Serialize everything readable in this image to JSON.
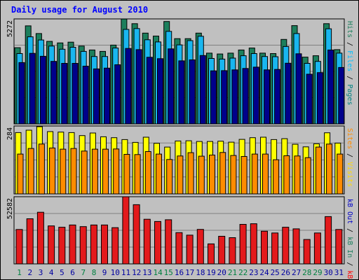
{
  "colors": {
    "background": "#c0c0c0",
    "frame": "#000000",
    "title": "#0000ff",
    "pages": "#008080",
    "files": "#00bfff",
    "hits": "#1c7f5c",
    "hits_fill": "#1c7f5c",
    "files_fill": "#19b6ef",
    "pages_fill": "#00008b",
    "visits_fill": "#ffff00",
    "sites_fill": "#ff8c00",
    "kbin_fill": "#e31a1c",
    "kbout_fill": "#0b7a4a",
    "visits": "#ffd800",
    "sites": "#ff8c00",
    "kbf": "#ff0000",
    "kbin": "#1c7f5c",
    "kbout": "#0000c8",
    "weekend_label": "#008040",
    "weekday_label": "#0000a0",
    "gridline": "#808080"
  },
  "chart_data": {
    "type": "bar",
    "title": "Daily usage for August 2010",
    "categories": [
      "1",
      "2",
      "3",
      "4",
      "5",
      "6",
      "7",
      "8",
      "9",
      "10",
      "11",
      "12",
      "13",
      "14",
      "15",
      "16",
      "17",
      "18",
      "19",
      "20",
      "21",
      "22",
      "23",
      "24",
      "25",
      "26",
      "27",
      "28",
      "29",
      "30",
      "31"
    ],
    "weekend_days": [
      "1",
      "7",
      "8",
      "14",
      "15",
      "21",
      "22",
      "28",
      "29"
    ],
    "panels": [
      {
        "name": "hits-files-pages",
        "ymax_label": "5272",
        "ymax": 5272,
        "labels": [
          {
            "text": "Pages",
            "color": "pages"
          },
          {
            "text": " / ",
            "color": "frame"
          },
          {
            "text": "Files",
            "color": "files"
          },
          {
            "text": " / ",
            "color": "frame"
          },
          {
            "text": "Hits",
            "color": "hits"
          }
        ],
        "series": [
          {
            "name": "Hits",
            "fill": "hits_fill",
            "values": [
              3880,
              4990,
              4600,
              4200,
              4120,
              4160,
              3960,
              3760,
              3690,
              4010,
              5340,
              5100,
              4620,
              4470,
              5210,
              4340,
              4340,
              4620,
              3600,
              3560,
              3600,
              3760,
              3860,
              3600,
              3580,
              4300,
              5000,
              3400,
              3470,
              5100,
              3780
            ]
          },
          {
            "name": "Files",
            "fill": "files_fill",
            "values": [
              3580,
              4430,
              4270,
              3960,
              3800,
              3900,
              3690,
              3430,
              3430,
              3860,
              4810,
              4850,
              4280,
              4170,
              4710,
              4020,
              4240,
              4460,
              3330,
              3300,
              3350,
              3470,
              3580,
              3430,
              3420,
              3940,
              4600,
              3080,
              3180,
              4840,
              3600
            ]
          },
          {
            "name": "Pages",
            "fill": "pages_fill",
            "values": [
              3120,
              3590,
              3440,
              3180,
              3080,
              3080,
              2940,
              2800,
              2840,
              3010,
              3840,
              3780,
              3390,
              3320,
              3820,
              3210,
              3260,
              3480,
              2700,
              2710,
              2750,
              2820,
              2890,
              2750,
              2770,
              3090,
              3570,
              2530,
              2610,
              3760,
              2870
            ]
          }
        ]
      },
      {
        "name": "visits-sites",
        "ymax_label": "284",
        "ymax": 284,
        "labels": [
          {
            "text": "Visits",
            "color": "visits"
          },
          {
            "text": " / ",
            "color": "frame"
          },
          {
            "text": "Sites",
            "color": "sites"
          }
        ],
        "series": [
          {
            "name": "Visits",
            "fill": "visits_fill",
            "values": [
              262,
              272,
              287,
              266,
              264,
              262,
              249,
              260,
              244,
              240,
              232,
              220,
              242,
              216,
              200,
              226,
              227,
              224,
              224,
              225,
              221,
              233,
              240,
              242,
              232,
              236,
              212,
              201,
              214,
              261,
              217
            ]
          },
          {
            "name": "Sites",
            "fill": "sites_fill",
            "values": [
              170,
              194,
              213,
              196,
              191,
              194,
              183,
              191,
              191,
              192,
              169,
              168,
              181,
              170,
              147,
              162,
              176,
              161,
              166,
              177,
              164,
              160,
              170,
              170,
              146,
              163,
              162,
              155,
              200,
              213,
              170
            ]
          }
        ]
      },
      {
        "name": "kbf-kbin-kbout",
        "ymax_label": "52582",
        "ymax": 52582,
        "labels": [
          {
            "text": "kB F",
            "color": "kbf"
          },
          {
            "text": " / ",
            "color": "frame"
          },
          {
            "text": "kB In",
            "color": "kbin"
          },
          {
            "text": " / ",
            "color": "frame"
          },
          {
            "text": "kB Out",
            "color": "kbout"
          }
        ],
        "series": [
          {
            "name": "kB F",
            "fill": "kbin_fill",
            "values": [
              27500,
              36100,
              41300,
              30400,
              29300,
              31100,
              29800,
              31100,
              31100,
              29000,
              53700,
              47300,
              35700,
              33900,
              35300,
              25000,
              23000,
              27600,
              16000,
              22100,
              21000,
              31600,
              32100,
              26100,
              24700,
              29300,
              28000,
              19500,
              24700,
              37800,
              27500
            ]
          }
        ]
      }
    ]
  }
}
